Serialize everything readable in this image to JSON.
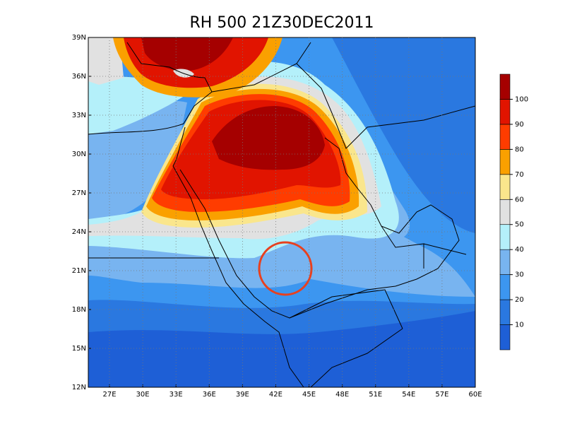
{
  "title": "RH 500 21Z30DEC2011",
  "lat_labels": [
    "39N",
    "36N",
    "33N",
    "30N",
    "27N",
    "24N",
    "21N",
    "18N",
    "15N",
    "12N"
  ],
  "lon_labels": [
    "27E",
    "30E",
    "33E",
    "36E",
    "39E",
    "42E",
    "45E",
    "48E",
    "51E",
    "54E",
    "57E",
    "60E"
  ],
  "colorbar": {
    "labels": [
      10,
      20,
      30,
      40,
      50,
      60,
      70,
      80,
      90,
      100
    ],
    "colors": [
      "#1e5fd6",
      "#2a78e0",
      "#3c96f0",
      "#78b4f0",
      "#b4f0fa",
      "#e1e1e1",
      "#fae68c",
      "#faa000",
      "#ff3c00",
      "#e11400",
      "#a50000"
    ]
  }
}
